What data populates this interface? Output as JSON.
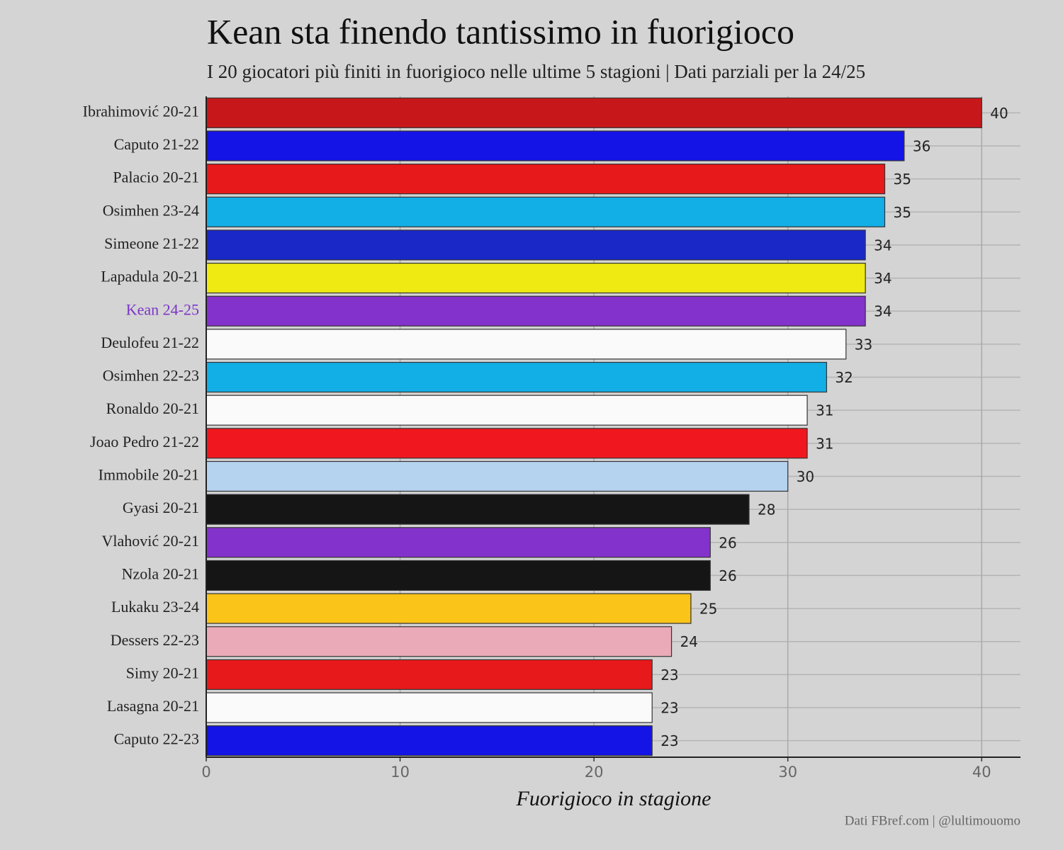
{
  "chart_data": {
    "type": "bar",
    "orientation": "horizontal",
    "title": "Kean sta finendo tantissimo in fuorigioco",
    "subtitle": "I 20 giocatori più finiti in fuorigioco nelle ultime 5 stagioni | Dati parziali per la 24/25",
    "x_label": "Fuorigioco in stagione",
    "source": "Dati FBref.com | @lultimouomo",
    "categories": [
      "Ibrahimović 20-21",
      "Caputo 21-22",
      "Palacio 20-21",
      "Osimhen 23-24",
      "Simeone 21-22",
      "Lapadula 20-21",
      "Kean 24-25",
      "Deulofeu 21-22",
      "Osimhen 22-23",
      "Ronaldo 20-21",
      "Joao Pedro 21-22",
      "Immobile 20-21",
      "Gyasi 20-21",
      "Vlahović 20-21",
      "Nzola 20-21",
      "Lukaku 23-24",
      "Dessers 22-23",
      "Simy 20-21",
      "Lasagna 20-21",
      "Caputo 22-23"
    ],
    "values": [
      40,
      36,
      35,
      35,
      34,
      34,
      34,
      33,
      32,
      31,
      31,
      30,
      28,
      26,
      26,
      25,
      24,
      23,
      23,
      23
    ],
    "colors": [
      "#c8171a",
      "#1414e6",
      "#e8191a",
      "#12aee6",
      "#1a28c8",
      "#eeea12",
      "#8432cc",
      "#fafafa",
      "#12aee6",
      "#fafafa",
      "#f0181e",
      "#b5d3ef",
      "#151515",
      "#8432cc",
      "#151515",
      "#fbc418",
      "#eaaab8",
      "#e8191a",
      "#fafafa",
      "#1414e6"
    ],
    "label_colors": [
      "#222222",
      "#222222",
      "#222222",
      "#222222",
      "#222222",
      "#222222",
      "#7b35c8",
      "#222222",
      "#222222",
      "#222222",
      "#222222",
      "#222222",
      "#222222",
      "#222222",
      "#222222",
      "#222222",
      "#222222",
      "#222222",
      "#222222",
      "#222222"
    ],
    "xlim": [
      0,
      42
    ],
    "xticks": [
      0,
      10,
      20,
      30,
      40
    ],
    "grid": true
  }
}
